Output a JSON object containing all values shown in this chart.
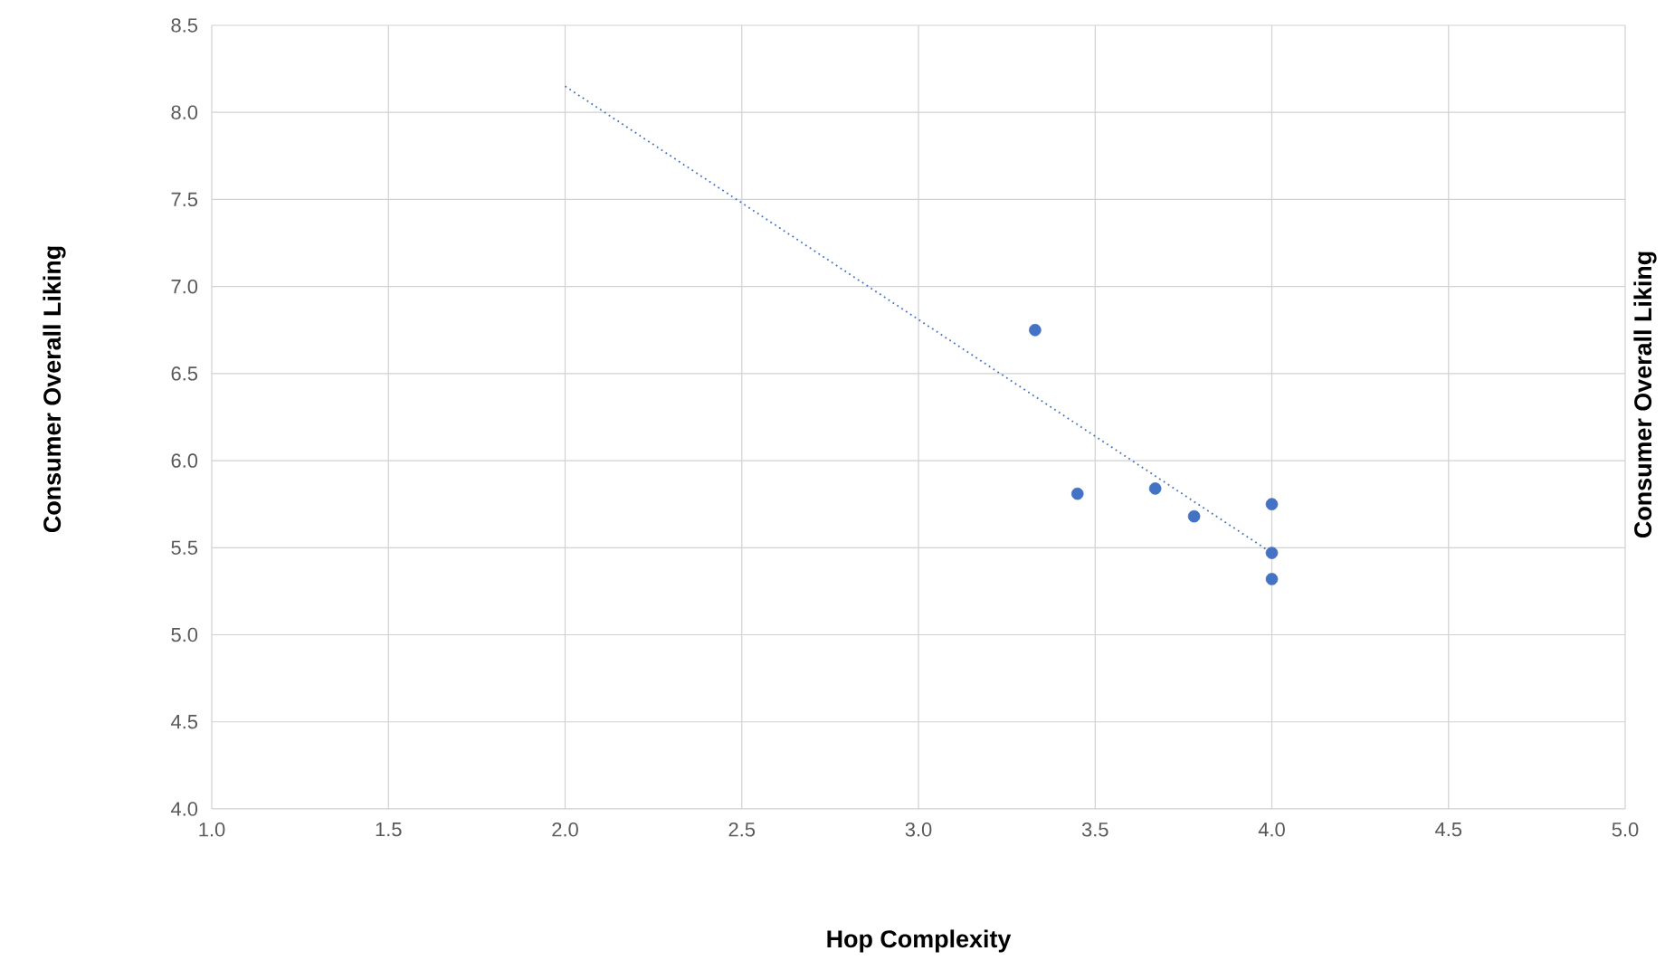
{
  "chart_data": {
    "type": "scatter",
    "xlabel": "Hop Complexity",
    "ylabel": "Consumer Overall Liking",
    "y2label": "Consumer Overall Liking",
    "xlim": [
      1.0,
      5.0
    ],
    "ylim": [
      4.0,
      8.5
    ],
    "xticks": [
      {
        "value": 1.0,
        "label": "1.0"
      },
      {
        "value": 1.5,
        "label": "1.5"
      },
      {
        "value": 2.0,
        "label": "2.0"
      },
      {
        "value": 2.5,
        "label": "2.5"
      },
      {
        "value": 3.0,
        "label": "3.0"
      },
      {
        "value": 3.5,
        "label": "3.5"
      },
      {
        "value": 4.0,
        "label": "4.0"
      },
      {
        "value": 4.5,
        "label": "4.5"
      },
      {
        "value": 5.0,
        "label": "5.0"
      }
    ],
    "yticks": [
      {
        "value": 4.0,
        "label": "4.0"
      },
      {
        "value": 4.5,
        "label": "4.5"
      },
      {
        "value": 5.0,
        "label": "5.0"
      },
      {
        "value": 5.5,
        "label": "5.5"
      },
      {
        "value": 6.0,
        "label": "6.0"
      },
      {
        "value": 6.5,
        "label": "6.5"
      },
      {
        "value": 7.0,
        "label": "7.0"
      },
      {
        "value": 7.5,
        "label": "7.5"
      },
      {
        "value": 8.0,
        "label": "8.0"
      },
      {
        "value": 8.5,
        "label": "8.5"
      }
    ],
    "grid": true,
    "series": [
      {
        "color": "#4472c4",
        "marker": "circle",
        "x": [
          3.33,
          3.45,
          3.67,
          3.78,
          4.0,
          4.0,
          4.0
        ],
        "values": [
          6.75,
          5.81,
          5.84,
          5.68,
          5.75,
          5.47,
          5.32
        ]
      },
      {
        "type": "line",
        "color": "#4472c4",
        "line_style": "dotted",
        "marker": "none",
        "x": [
          2.0,
          4.0
        ],
        "values": [
          8.15,
          5.47
        ]
      }
    ]
  }
}
